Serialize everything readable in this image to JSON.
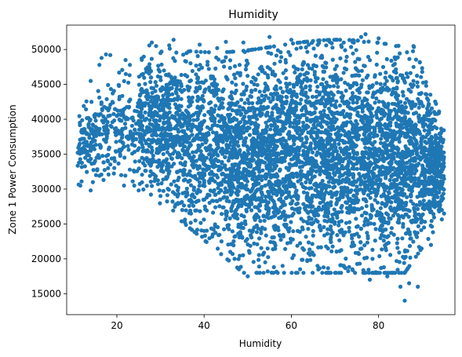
{
  "chart_data": {
    "type": "scatter",
    "title": "Humidity",
    "xlabel": "Humidity",
    "ylabel": "Zone 1 Power Consumption",
    "xlim": [
      8.5,
      97.5
    ],
    "ylim": [
      12000,
      53500
    ],
    "xticks": [
      20,
      40,
      60,
      80
    ],
    "yticks": [
      15000,
      20000,
      25000,
      30000,
      35000,
      40000,
      45000,
      50000
    ],
    "grid": false,
    "marker_color": "#1f77b4",
    "series": [
      {
        "description": "dense scatter of humidity vs zone 1 power consumption; boundary samples",
        "points": [
          [
            11.5,
            36500
          ],
          [
            12.0,
            37200
          ],
          [
            13.0,
            38000
          ],
          [
            13.5,
            40200
          ],
          [
            14.0,
            45500
          ],
          [
            14.0,
            29800
          ],
          [
            14.5,
            31000
          ],
          [
            15.0,
            34000
          ],
          [
            16.0,
            47800
          ],
          [
            16.5,
            48800
          ],
          [
            17.5,
            49300
          ],
          [
            18.5,
            49200
          ],
          [
            18.0,
            33000
          ],
          [
            19.0,
            42500
          ],
          [
            20.0,
            40500
          ],
          [
            21.0,
            32000
          ],
          [
            22.0,
            48500
          ],
          [
            23.0,
            47800
          ],
          [
            24.0,
            32500
          ],
          [
            25.0,
            29800
          ],
          [
            26.0,
            46500
          ],
          [
            27.0,
            34000
          ],
          [
            28.0,
            51000
          ],
          [
            29.0,
            50500
          ],
          [
            30.0,
            49500
          ],
          [
            30.0,
            29000
          ],
          [
            32.0,
            50600
          ],
          [
            33.0,
            51400
          ],
          [
            34.0,
            28000
          ],
          [
            35.0,
            27000
          ],
          [
            36.0,
            49500
          ],
          [
            37.0,
            26500
          ],
          [
            38.0,
            25500
          ],
          [
            39.0,
            50700
          ],
          [
            40.0,
            24000
          ],
          [
            42.0,
            23500
          ],
          [
            43.0,
            50200
          ],
          [
            44.0,
            22500
          ],
          [
            45.0,
            51100
          ],
          [
            46.0,
            21000
          ],
          [
            47.0,
            20000
          ],
          [
            48.0,
            18500
          ],
          [
            49.0,
            51000
          ],
          [
            50.0,
            17500
          ],
          [
            52.0,
            18000
          ],
          [
            54.0,
            19500
          ],
          [
            55.0,
            51800
          ],
          [
            56.0,
            18800
          ],
          [
            58.0,
            19000
          ],
          [
            60.0,
            51400
          ],
          [
            62.0,
            18500
          ],
          [
            64.0,
            50700
          ],
          [
            66.0,
            19000
          ],
          [
            68.0,
            50600
          ],
          [
            70.0,
            18000
          ],
          [
            72.0,
            51000
          ],
          [
            74.0,
            18500
          ],
          [
            76.0,
            51800
          ],
          [
            77.0,
            52200
          ],
          [
            78.0,
            17000
          ],
          [
            80.0,
            51600
          ],
          [
            82.0,
            17500
          ],
          [
            84.0,
            50500
          ],
          [
            85.0,
            16000
          ],
          [
            86.0,
            14000
          ],
          [
            87.0,
            16500
          ],
          [
            88.0,
            47500
          ],
          [
            89.0,
            16000
          ],
          [
            90.0,
            46800
          ],
          [
            91.0,
            40000
          ],
          [
            92.0,
            22000
          ],
          [
            93.0,
            35000
          ],
          [
            94.0,
            30000
          ],
          [
            94.5,
            27000
          ],
          [
            95.0,
            26500
          ]
        ]
      }
    ]
  }
}
